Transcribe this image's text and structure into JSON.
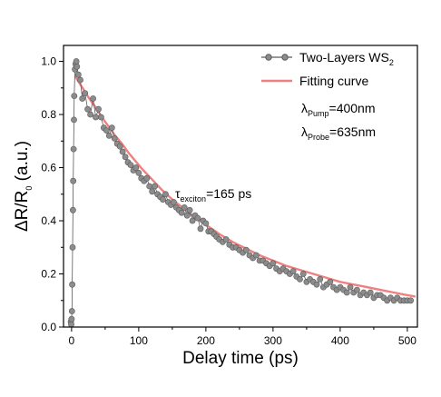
{
  "chart_data": {
    "type": "scatter",
    "xlabel": "Delay time (ps)",
    "ylabel_parts": {
      "delta": "ΔR/R",
      "sub": "0",
      "unit": " (a.u.)"
    },
    "xlim": [
      -12,
      515
    ],
    "ylim": [
      0.0,
      1.06
    ],
    "x_ticks": [
      0,
      100,
      200,
      300,
      400,
      500
    ],
    "y_ticks": [
      0.0,
      0.2,
      0.4,
      0.6,
      0.8,
      1.0
    ],
    "x_tick_labels": [
      "0",
      "100",
      "200",
      "300",
      "400",
      "500"
    ],
    "y_tick_labels": [
      "0.0",
      "0.2",
      "0.4",
      "0.6",
      "0.8",
      "1.0"
    ],
    "legend": {
      "position": "top-right",
      "entries": [
        {
          "key": "data",
          "text": "Two-Layers WS",
          "sub": "2"
        },
        {
          "key": "fit",
          "text": "Fitting curve",
          "sub": ""
        }
      ]
    },
    "annotations": {
      "pump": {
        "lambda": "λ",
        "sub": "Pump",
        "value": "=400nm"
      },
      "probe": {
        "lambda": "λ",
        "sub": "Probe",
        "value": "=635nm"
      },
      "tau": {
        "symbol": "τ",
        "sub": "exciton",
        "value": "=165 ps"
      }
    },
    "colors": {
      "data": "#8c8c8c",
      "data_stroke": "#5a5a5a",
      "fit": "#f08080",
      "axis": "#000000"
    },
    "series": [
      {
        "name": "Two-Layers WS2",
        "kind": "scatter",
        "x": [
          -1,
          -0.5,
          0,
          0.5,
          1,
          1.5,
          2,
          2.5,
          3,
          3.5,
          4,
          5,
          6,
          7,
          8,
          10,
          13,
          16,
          20,
          24,
          28,
          32,
          36,
          40,
          44,
          48,
          52,
          56,
          60,
          64,
          68,
          72,
          76,
          80,
          84,
          88,
          92,
          96,
          100,
          104,
          108,
          112,
          116,
          120,
          124,
          128,
          132,
          136,
          140,
          144,
          148,
          152,
          156,
          160,
          164,
          168,
          172,
          176,
          180,
          184,
          188,
          192,
          196,
          200,
          204,
          208,
          212,
          216,
          220,
          225,
          230,
          235,
          240,
          245,
          250,
          255,
          260,
          265,
          270,
          275,
          280,
          285,
          290,
          295,
          300,
          305,
          310,
          315,
          320,
          325,
          330,
          335,
          340,
          345,
          350,
          355,
          360,
          365,
          370,
          375,
          380,
          385,
          390,
          395,
          400,
          405,
          410,
          415,
          420,
          425,
          430,
          435,
          440,
          445,
          450,
          455,
          460,
          465,
          470,
          475,
          480,
          485,
          490,
          495,
          500,
          505
        ],
        "y": [
          0.02,
          0.01,
          0.03,
          0.06,
          0.16,
          0.3,
          0.44,
          0.55,
          0.67,
          0.78,
          0.87,
          0.97,
          0.99,
          1.0,
          0.98,
          0.95,
          0.93,
          0.86,
          0.88,
          0.82,
          0.8,
          0.86,
          0.79,
          0.82,
          0.79,
          0.75,
          0.74,
          0.72,
          0.75,
          0.71,
          0.69,
          0.68,
          0.66,
          0.64,
          0.62,
          0.61,
          0.59,
          0.6,
          0.58,
          0.56,
          0.55,
          0.56,
          0.53,
          0.51,
          0.53,
          0.5,
          0.49,
          0.48,
          0.5,
          0.47,
          0.46,
          0.47,
          0.45,
          0.44,
          0.43,
          0.45,
          0.42,
          0.44,
          0.4,
          0.42,
          0.41,
          0.37,
          0.4,
          0.39,
          0.36,
          0.36,
          0.35,
          0.34,
          0.33,
          0.32,
          0.33,
          0.31,
          0.3,
          0.3,
          0.29,
          0.28,
          0.29,
          0.27,
          0.26,
          0.27,
          0.25,
          0.25,
          0.24,
          0.23,
          0.24,
          0.22,
          0.21,
          0.22,
          0.21,
          0.2,
          0.21,
          0.19,
          0.18,
          0.2,
          0.17,
          0.18,
          0.17,
          0.16,
          0.18,
          0.15,
          0.16,
          0.17,
          0.15,
          0.14,
          0.15,
          0.14,
          0.13,
          0.15,
          0.13,
          0.14,
          0.12,
          0.13,
          0.12,
          0.13,
          0.11,
          0.12,
          0.12,
          0.11,
          0.1,
          0.11,
          0.1,
          0.11,
          0.1,
          0.1,
          0.1,
          0.1
        ]
      },
      {
        "name": "Fitting curve",
        "kind": "line",
        "x": [
          5,
          15,
          25,
          35,
          45,
          55,
          65,
          75,
          85,
          95,
          105,
          120,
          135,
          150,
          165,
          180,
          200,
          220,
          240,
          260,
          280,
          300,
          320,
          340,
          360,
          380,
          400,
          420,
          440,
          460,
          480,
          500,
          512
        ],
        "y": [
          0.945,
          0.905,
          0.865,
          0.83,
          0.79,
          0.755,
          0.72,
          0.69,
          0.655,
          0.625,
          0.595,
          0.555,
          0.515,
          0.48,
          0.45,
          0.42,
          0.385,
          0.35,
          0.32,
          0.295,
          0.27,
          0.25,
          0.23,
          0.215,
          0.2,
          0.185,
          0.17,
          0.16,
          0.15,
          0.14,
          0.13,
          0.12,
          0.115
        ]
      }
    ]
  }
}
